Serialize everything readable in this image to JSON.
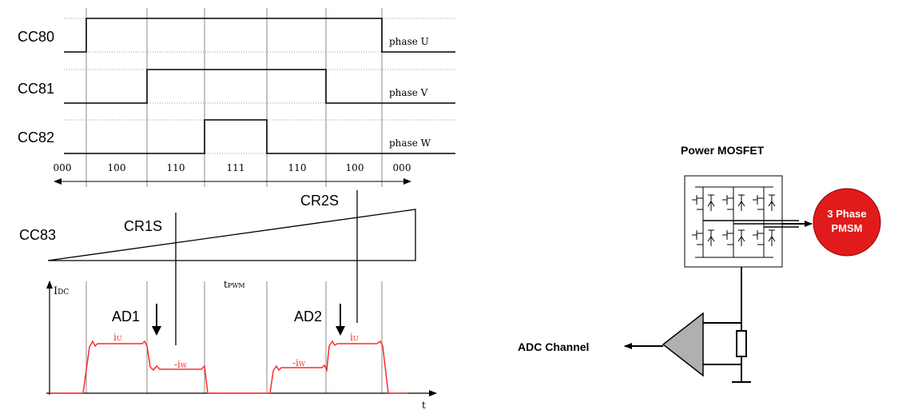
{
  "timing": {
    "signals": [
      {
        "name": "CC80",
        "phase": "phase U"
      },
      {
        "name": "CC81",
        "phase": "phase V"
      },
      {
        "name": "CC82",
        "phase": "phase W"
      }
    ],
    "states": [
      "000",
      "100",
      "110",
      "111",
      "110",
      "100",
      "000"
    ],
    "carrier_label": "CC83",
    "compare_labels": [
      "CR1S",
      "CR2S"
    ],
    "current_axis_label": "I",
    "current_axis_subscript": "DC",
    "period_label": "t",
    "period_subscript": "PWM",
    "time_axis_label": "t",
    "sample_labels": [
      "AD1",
      "AD2"
    ],
    "current_labels": [
      {
        "main": "i",
        "sub": "U"
      },
      {
        "main": "-i",
        "sub": "W"
      },
      {
        "main": "-i",
        "sub": "W"
      },
      {
        "main": "i",
        "sub": "U"
      }
    ],
    "colors": {
      "current": "#ff2a2a",
      "grid": "#777777",
      "line": "#000000"
    }
  },
  "circuit": {
    "mosfet_label": "Power MOSFET",
    "motor_label_line1": "3 Phase",
    "motor_label_line2": "PMSM",
    "adc_label": "ADC Channel",
    "colors": {
      "motor_fill": "#e11b1b",
      "amp_fill": "#b0b0b0"
    }
  }
}
